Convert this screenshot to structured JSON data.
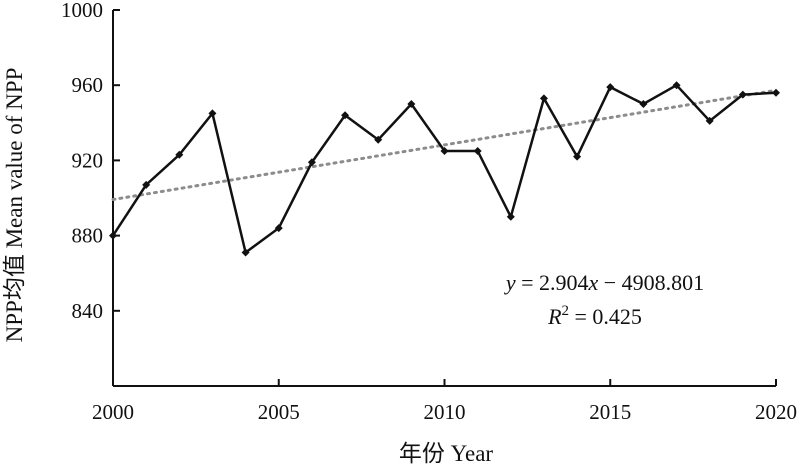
{
  "chart_data": {
    "type": "line",
    "xlabel": "年份 Year",
    "ylabel": "NPP均值 Mean value of NPP",
    "xlim": [
      2000,
      2020
    ],
    "ylim": [
      800,
      1000
    ],
    "xticks": [
      2000,
      2005,
      2010,
      2015,
      2020
    ],
    "yticks": [
      840,
      880,
      920,
      960,
      1000
    ],
    "grid": false,
    "series": [
      {
        "x": [
          2000,
          2001,
          2002,
          2003,
          2004,
          2005,
          2006,
          2007,
          2008,
          2009,
          2010,
          2011,
          2012,
          2013,
          2014,
          2015,
          2016,
          2017,
          2018,
          2019,
          2020
        ],
        "values": [
          880,
          907,
          923,
          945,
          871,
          884,
          919,
          944,
          931,
          950,
          925,
          925,
          890,
          953,
          922,
          959,
          950,
          960,
          941,
          955,
          956
        ],
        "color": "#111111",
        "marker": "diamond"
      }
    ],
    "trendline": {
      "slope": 2.904,
      "intercept": -4908.801,
      "color": "#8c8c8c",
      "style": "dotted",
      "equation_text": "y = 2.904x − 4908.801",
      "r2_text": "R2 = 0.425"
    }
  }
}
